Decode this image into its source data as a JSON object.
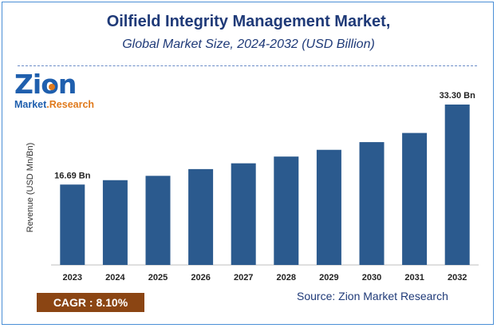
{
  "header": {
    "title": "Oilfield Integrity Management Market,",
    "subtitle": "Global Market Size, 2024-2032 (USD Billion)"
  },
  "logo": {
    "name": "Zion",
    "sub_a": "Market",
    "sub_b": ".Research"
  },
  "footer": {
    "cagr": "CAGR :  8.10%",
    "source": "Source: Zion Market Research"
  },
  "colors": {
    "bar": "#2b5a8e",
    "title": "#1f3a78",
    "cagr_bg": "#8b4513",
    "accent": "#e07a1c"
  },
  "chart_data": {
    "type": "bar",
    "ylabel": "Revenue (USD Mn/Bn)",
    "categories": [
      "2023",
      "2024",
      "2025",
      "2026",
      "2027",
      "2028",
      "2029",
      "2030",
      "2031",
      "2032"
    ],
    "values": [
      16.69,
      17.6,
      18.5,
      19.9,
      21.1,
      22.5,
      23.9,
      25.5,
      27.4,
      33.3
    ],
    "data_labels": {
      "0": "16.69 Bn",
      "9": "33.30 Bn"
    },
    "grid": false
  }
}
